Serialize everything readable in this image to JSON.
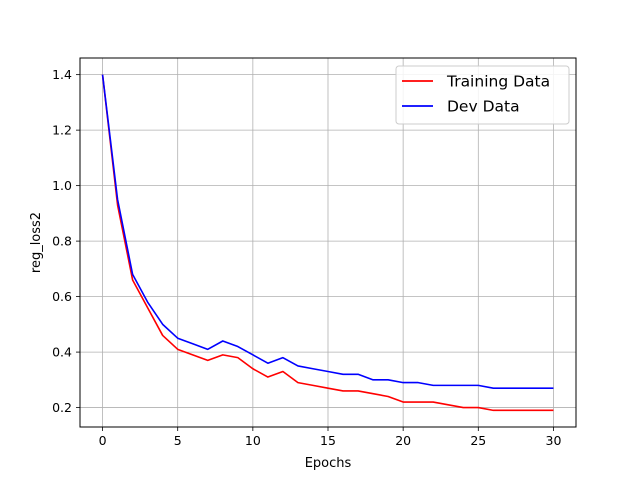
{
  "chart_data": {
    "type": "line",
    "xlabel": "Epochs",
    "ylabel": "reg_loss2",
    "xlim": [
      -1.5,
      31.5
    ],
    "ylim": [
      0.13,
      1.46
    ],
    "xticks": [
      0,
      5,
      10,
      15,
      20,
      25,
      30
    ],
    "yticks": [
      0.2,
      0.4,
      0.6,
      0.8,
      1.0,
      1.2,
      1.4
    ],
    "ytick_labels": [
      "0.2",
      "0.4",
      "0.6",
      "0.8",
      "1.0",
      "1.2",
      "1.4"
    ],
    "grid": true,
    "legend_position": "top-right",
    "x": [
      0,
      1,
      2,
      3,
      4,
      5,
      6,
      7,
      8,
      9,
      10,
      11,
      12,
      13,
      14,
      15,
      16,
      17,
      18,
      19,
      20,
      21,
      22,
      23,
      24,
      25,
      26,
      27,
      28,
      29,
      30
    ],
    "series": [
      {
        "name": "Training Data",
        "color": "#ff0000",
        "values": [
          1.4,
          0.93,
          0.66,
          0.56,
          0.46,
          0.41,
          0.39,
          0.37,
          0.39,
          0.38,
          0.34,
          0.31,
          0.33,
          0.29,
          0.28,
          0.27,
          0.26,
          0.26,
          0.25,
          0.24,
          0.22,
          0.22,
          0.22,
          0.21,
          0.2,
          0.2,
          0.19,
          0.19,
          0.19,
          0.19,
          0.19
        ]
      },
      {
        "name": "Dev Data",
        "color": "#0000ff",
        "values": [
          1.4,
          0.95,
          0.68,
          0.58,
          0.5,
          0.45,
          0.43,
          0.41,
          0.44,
          0.42,
          0.39,
          0.36,
          0.38,
          0.35,
          0.34,
          0.33,
          0.32,
          0.32,
          0.3,
          0.3,
          0.29,
          0.29,
          0.28,
          0.28,
          0.28,
          0.28,
          0.27,
          0.27,
          0.27,
          0.27,
          0.27
        ]
      }
    ]
  }
}
